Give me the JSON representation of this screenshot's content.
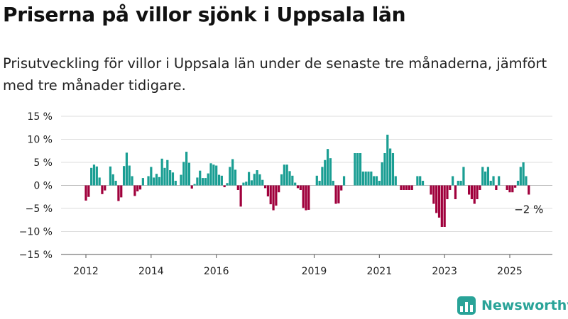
{
  "title": "Priserna på villor sjönk i Uppsala län",
  "subtitle": "Prisutveckling för villor i Uppsala län under de senaste tre månaderna, jämfört med tre månader tidigare.",
  "brand": "Newsworthy",
  "colors": {
    "positive": "#1a9e93",
    "negative": "#a0003c",
    "brand": "#29a398",
    "grid": "#dddddd"
  },
  "chart_data": {
    "type": "bar",
    "unit": "%",
    "ylim": [
      -15,
      15
    ],
    "yticks": [
      15,
      10,
      5,
      0,
      -5,
      -10,
      -15
    ],
    "ytick_labels": [
      "15 %",
      "10 %",
      "5 %",
      "0 %",
      "−5 %",
      "−10 %",
      "−15 %"
    ],
    "xticks": [
      {
        "label": "2012",
        "x": 2012.0
      },
      {
        "label": "2014",
        "x": 2014.0
      },
      {
        "label": "2016",
        "x": 2016.0
      },
      {
        "label": "2019",
        "x": 2019.0
      },
      {
        "label": "2021",
        "x": 2021.0
      },
      {
        "label": "2023",
        "x": 2023.0
      },
      {
        "label": "2025",
        "x": 2025.0
      }
    ],
    "start": 2012.0,
    "step_months": 1,
    "grid": true,
    "annotation": "−2 %",
    "values": [
      -3.3,
      -2.5,
      3.8,
      4.5,
      4.1,
      1.7,
      -1.9,
      -1.1,
      0,
      4.1,
      2.4,
      1.0,
      -3.4,
      -2.6,
      4.2,
      7.1,
      4.3,
      2.0,
      -2.3,
      -1.3,
      -0.9,
      1.6,
      0,
      2.0,
      4.0,
      1.7,
      2.5,
      1.8,
      5.8,
      3.8,
      5.5,
      3.3,
      2.8,
      1.0,
      0,
      2.3,
      5.1,
      7.3,
      4.9,
      -0.7,
      0.3,
      1.7,
      3.2,
      1.6,
      1.6,
      2.6,
      4.8,
      4.5,
      4.3,
      2.3,
      2.1,
      -0.4,
      0.5,
      4.0,
      5.7,
      3.4,
      -1.0,
      -4.6,
      0.6,
      0.8,
      2.9,
      1.1,
      2.5,
      3.3,
      2.4,
      1.2,
      -0.6,
      -2.4,
      -4.1,
      -5.4,
      -4.4,
      -1.5,
      2.4,
      4.5,
      4.5,
      3.1,
      2.1,
      0.6,
      -0.6,
      -1.0,
      -4.9,
      -5.4,
      -5.3,
      0,
      0,
      2.1,
      1.0,
      4.0,
      5.5,
      7.9,
      5.9,
      1.0,
      -4.0,
      -3.9,
      -1.1,
      2.0,
      0,
      0,
      0,
      7.0,
      7.0,
      7.0,
      3.0,
      3.0,
      3.0,
      3.0,
      2.0,
      2.0,
      1.0,
      5.0,
      7.0,
      11.0,
      8.0,
      7.0,
      2.0,
      0,
      -1.0,
      -1.0,
      -1.0,
      -1.0,
      -1.0,
      0,
      2.0,
      2.0,
      1.0,
      0,
      0,
      -2.0,
      -4.0,
      -6.0,
      -7.0,
      -9.0,
      -9.0,
      -3.0,
      -1.0,
      2.0,
      -3.0,
      1.0,
      1.0,
      4.0,
      0,
      -2.0,
      -3.0,
      -4.0,
      -3.0,
      -1.0,
      4.0,
      3.0,
      4.0,
      1.0,
      2.0,
      -1.0,
      2.0,
      0,
      0,
      -1.0,
      -1.5,
      -1.5,
      -0.5,
      1.0,
      4.0,
      5.0,
      2.0,
      -2.0
    ]
  }
}
